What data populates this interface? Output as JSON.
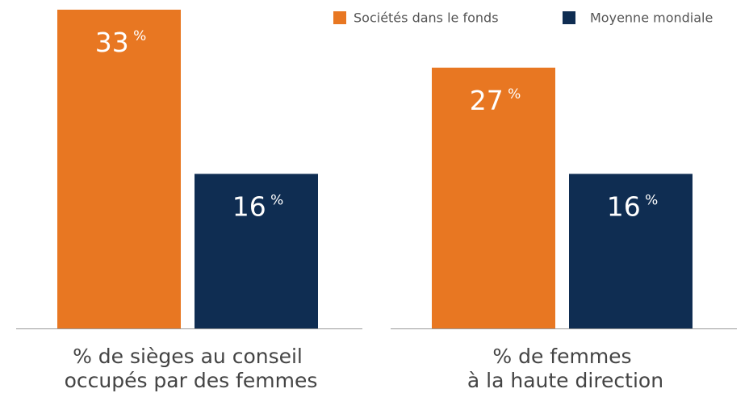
{
  "chart_data": {
    "type": "bar",
    "categories": [
      "% de sièges au conseil\noccupés par des femmes",
      "% de femmes\nà la haute direction"
    ],
    "series": [
      {
        "name": "Sociétés dans le fonds",
        "color": "#e87722",
        "values": [
          33,
          27
        ],
        "value_labels": [
          "33 %",
          "27 %"
        ]
      },
      {
        "name": "Moyenne mondiale",
        "color": "#0f2d52",
        "values": [
          16,
          16
        ],
        "value_labels": [
          "16 %",
          "16 %"
        ]
      }
    ],
    "ylim": [
      0,
      33
    ],
    "legend": "top-right"
  }
}
